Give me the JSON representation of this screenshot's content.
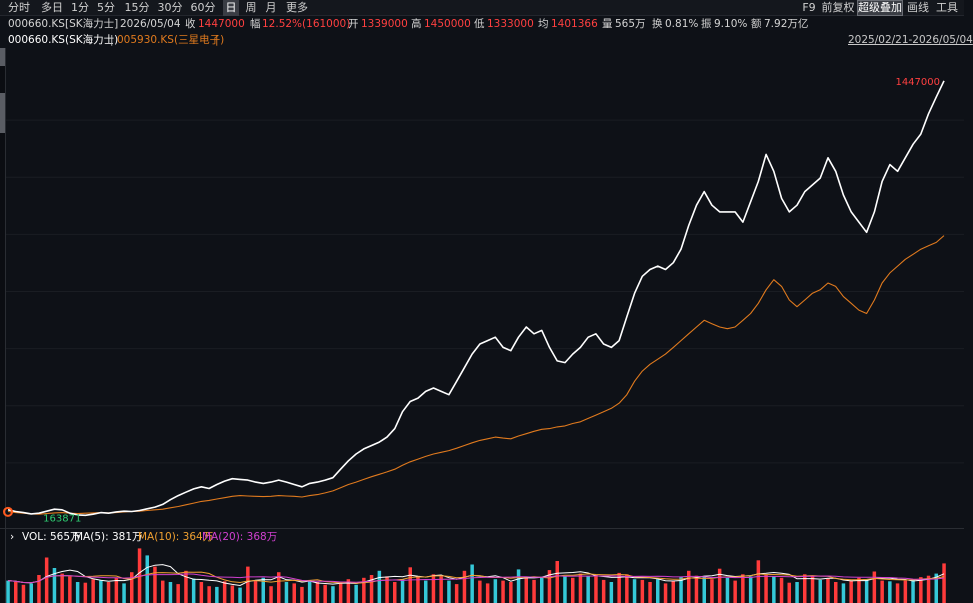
{
  "toolbar": {
    "periods": [
      {
        "label": "分时"
      },
      {
        "label": "多日"
      },
      {
        "label": "1分"
      },
      {
        "label": "5分"
      },
      {
        "label": "15分"
      },
      {
        "label": "30分"
      },
      {
        "label": "60分"
      },
      {
        "label": "日"
      },
      {
        "label": "周"
      },
      {
        "label": "月"
      },
      {
        "label": "更多"
      }
    ],
    "right": [
      {
        "label": "F9"
      },
      {
        "label": "前复权"
      },
      {
        "label": "超级叠加"
      },
      {
        "label": "画线"
      },
      {
        "label": "工具"
      }
    ]
  },
  "quote": {
    "code": "000660.KS[SK海力士]",
    "date": "2026/05/04",
    "close_label": "收",
    "close": "1447000",
    "change_label": "幅",
    "change": "12.52%(161000)",
    "open_label": "开",
    "open": "1339000",
    "high_label": "高",
    "high": "1450000",
    "low_label": "低",
    "low": "1333000",
    "avg_label": "均",
    "avg": "1401366",
    "volume_label": "量",
    "volume": "565万",
    "turnover_label": "换",
    "turnover": "0.81%",
    "amplitude_label": "振",
    "amplitude": "9.10%",
    "amount_label": "额",
    "amount": "7.92万亿"
  },
  "legend": {
    "primary": "000660.KS(SK海力士)",
    "separator": "|",
    "overlay": "005930.KS(三星电子)",
    "range": "2025/02/21-2026/05/04"
  },
  "volume_legend": {
    "vol": "VOL: 565万",
    "ma5": "MA(5): 381万",
    "ma10": "MA(10): 364万",
    "ma20": "MA(20): 368万"
  },
  "colors": {
    "primary_line": "#ffffff",
    "overlay_line": "#e07a1e",
    "up": "#ff3b3b",
    "down": "#35c8d8",
    "ma5": "#ffffff",
    "ma10": "#f0a030",
    "ma20": "#d040d0"
  },
  "chart_data": [
    {
      "type": "line",
      "title": "",
      "xlabel": "",
      "ylabel": "",
      "x_range": [
        "2025/02/21",
        "2026/05/04"
      ],
      "ylim": [
        150000,
        1500000
      ],
      "series": [
        {
          "name": "000660.KS(SK海力士)",
          "values": [
            180000,
            175000,
            172000,
            168000,
            170000,
            176000,
            182000,
            180000,
            170000,
            165000,
            163871,
            167000,
            172000,
            170000,
            174000,
            176000,
            175000,
            178000,
            183000,
            188000,
            196000,
            210000,
            222000,
            232000,
            242000,
            248000,
            243000,
            255000,
            265000,
            272000,
            270000,
            268000,
            262000,
            258000,
            262000,
            268000,
            262000,
            255000,
            248000,
            258000,
            262000,
            268000,
            275000,
            300000,
            325000,
            345000,
            360000,
            370000,
            380000,
            395000,
            420000,
            470000,
            500000,
            510000,
            530000,
            540000,
            530000,
            520000,
            560000,
            600000,
            640000,
            670000,
            680000,
            690000,
            660000,
            650000,
            690000,
            720000,
            700000,
            710000,
            660000,
            620000,
            615000,
            640000,
            660000,
            690000,
            700000,
            670000,
            660000,
            680000,
            750000,
            820000,
            870000,
            890000,
            900000,
            890000,
            910000,
            950000,
            1020000,
            1080000,
            1120000,
            1080000,
            1060000,
            1060000,
            1060000,
            1030000,
            1090000,
            1150000,
            1230000,
            1180000,
            1100000,
            1060000,
            1080000,
            1120000,
            1140000,
            1160000,
            1220000,
            1180000,
            1110000,
            1060000,
            1030000,
            1000000,
            1060000,
            1150000,
            1200000,
            1180000,
            1220000,
            1260000,
            1290000,
            1350000,
            1400000,
            1447000
          ]
        },
        {
          "name": "005930.KS(三星电子)",
          "values": [
            175000,
            172000,
            170000,
            168000,
            167000,
            169000,
            171000,
            172000,
            170000,
            169000,
            170000,
            171000,
            172000,
            171000,
            172000,
            174000,
            175000,
            176000,
            178000,
            180000,
            182000,
            186000,
            190000,
            195000,
            200000,
            205000,
            208000,
            212000,
            216000,
            220000,
            222000,
            221000,
            220000,
            219000,
            220000,
            222000,
            221000,
            220000,
            218000,
            222000,
            225000,
            230000,
            236000,
            245000,
            255000,
            262000,
            270000,
            278000,
            285000,
            292000,
            300000,
            312000,
            322000,
            330000,
            338000,
            345000,
            350000,
            355000,
            362000,
            370000,
            378000,
            385000,
            390000,
            395000,
            392000,
            390000,
            398000,
            405000,
            412000,
            418000,
            420000,
            425000,
            428000,
            435000,
            440000,
            450000,
            460000,
            470000,
            480000,
            495000,
            520000,
            560000,
            590000,
            610000,
            625000,
            640000,
            660000,
            680000,
            700000,
            720000,
            740000,
            730000,
            720000,
            715000,
            720000,
            740000,
            760000,
            790000,
            830000,
            860000,
            840000,
            800000,
            780000,
            800000,
            820000,
            830000,
            850000,
            840000,
            810000,
            790000,
            770000,
            760000,
            800000,
            850000,
            880000,
            900000,
            920000,
            935000,
            950000,
            960000,
            970000,
            990000
          ]
        }
      ],
      "annotations": [
        {
          "text": "1447000",
          "label_for": "max"
        },
        {
          "text": "163871",
          "label_for": "min"
        }
      ]
    },
    {
      "type": "bar",
      "title": "",
      "series_name": "VOL",
      "values": [
        3.2,
        3.0,
        2.6,
        2.8,
        4.0,
        6.5,
        5.0,
        4.2,
        3.8,
        3.0,
        2.9,
        3.4,
        3.2,
        3.0,
        3.6,
        2.8,
        4.4,
        7.8,
        6.8,
        5.2,
        3.2,
        3.0,
        2.7,
        4.6,
        3.5,
        3.0,
        2.4,
        2.3,
        3.1,
        2.5,
        2.2,
        5.2,
        3.2,
        3.6,
        2.4,
        4.4,
        3.0,
        2.8,
        2.3,
        3.2,
        3.0,
        2.6,
        2.4,
        2.9,
        3.4,
        2.6,
        3.6,
        4.0,
        4.6,
        3.8,
        3.0,
        3.4,
        5.1,
        3.8,
        3.2,
        4.1,
        3.8,
        3.2,
        2.7,
        4.6,
        5.5,
        3.2,
        2.8,
        3.4,
        3.2,
        3.0,
        4.8,
        3.6,
        3.3,
        3.7,
        4.7,
        6.0,
        3.8,
        3.6,
        4.2,
        3.8,
        4.0,
        3.3,
        3.0,
        4.3,
        4.1,
        3.4,
        3.3,
        3.0,
        3.4,
        2.8,
        3.2,
        3.7,
        4.6,
        3.9,
        3.8,
        3.4,
        4.9,
        3.6,
        3.2,
        4.1,
        3.8,
        6.1,
        4.0,
        3.8,
        3.6,
        2.9,
        3.0,
        4.1,
        3.8,
        3.3,
        3.5,
        3.0,
        2.8,
        3.2,
        3.6,
        3.4,
        4.5,
        3.2,
        3.1,
        2.8,
        3.2,
        3.4,
        3.7,
        3.9,
        4.2,
        5.65
      ],
      "ma5_level": 3.81,
      "ma10_level": 3.64,
      "ma20_level": 3.68
    }
  ]
}
